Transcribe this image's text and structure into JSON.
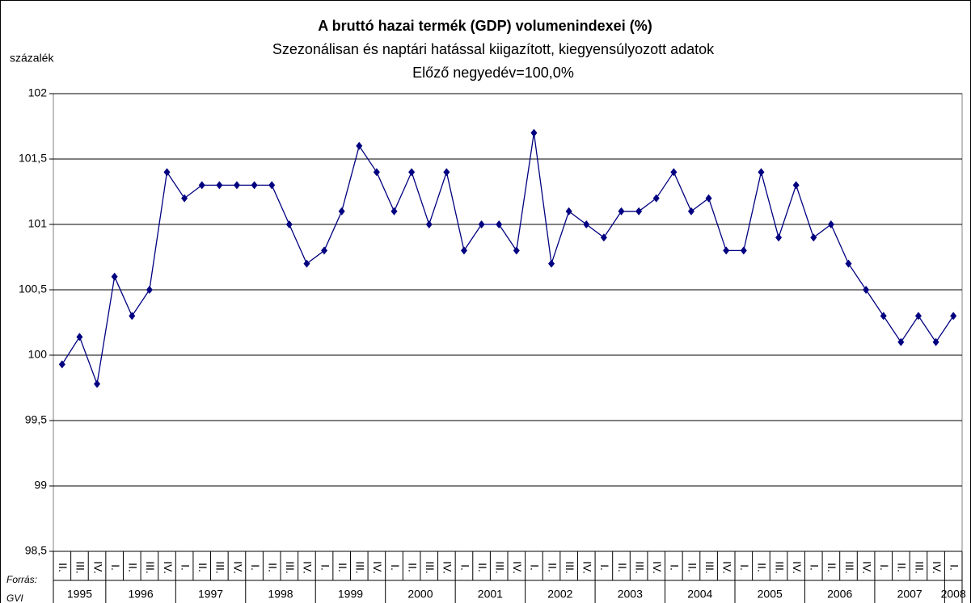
{
  "chart_data": {
    "type": "line",
    "title": "A bruttó hazai termék (GDP) volumenindexei (%)",
    "subtitle": [
      "Szezonálisan és naptári hatással kiigazított, kiegyensúlyozott adatok",
      "Előző negyedév=100,0%"
    ],
    "y_label": "százalék",
    "source": [
      "Forrás:",
      "GVI"
    ],
    "categories": [
      "II.",
      "III.",
      "IV.",
      "I.",
      "II.",
      "III.",
      "IV.",
      "I.",
      "II.",
      "III.",
      "IV.",
      "I.",
      "II.",
      "III.",
      "IV.",
      "I.",
      "II.",
      "III.",
      "IV.",
      "I.",
      "II.",
      "III.",
      "IV.",
      "I.",
      "II.",
      "III.",
      "IV.",
      "I.",
      "II.",
      "III.",
      "IV.",
      "I.",
      "II.",
      "III.",
      "IV.",
      "I.",
      "II.",
      "III.",
      "IV.",
      "I.",
      "II.",
      "III.",
      "IV.",
      "I.",
      "II.",
      "III.",
      "IV.",
      "I.",
      "II.",
      "III.",
      "IV.",
      "I."
    ],
    "years": [
      "1995",
      "1996",
      "1997",
      "1998",
      "1999",
      "2000",
      "2001",
      "2002",
      "2003",
      "2004",
      "2005",
      "2006",
      "2007",
      "2008"
    ],
    "series": [
      {
        "name": "GDP",
        "color": "#000080",
        "values": [
          99.93,
          100.14,
          99.78,
          100.6,
          100.3,
          100.5,
          101.4,
          101.2,
          101.3,
          101.3,
          101.3,
          101.3,
          101.3,
          101.0,
          100.7,
          100.8,
          101.1,
          101.6,
          101.4,
          101.1,
          101.4,
          101.0,
          101.4,
          100.8,
          101.0,
          101.0,
          100.8,
          101.7,
          100.7,
          101.1,
          101.0,
          100.9,
          101.1,
          101.1,
          101.2,
          101.4,
          101.1,
          101.2,
          100.8,
          100.8,
          101.4,
          100.9,
          101.3,
          100.9,
          101.0,
          100.7,
          100.5,
          100.3,
          100.1,
          100.3,
          100.1,
          100.3
        ]
      }
    ],
    "ylim": [
      98.5,
      102
    ],
    "yticks": [
      {
        "value": 98.5,
        "label": "98,5"
      },
      99,
      {
        "value": 99.5,
        "label": "99,5"
      },
      100,
      {
        "value": 100.5,
        "label": "100,5"
      },
      101,
      {
        "value": 101.5,
        "label": "101,5"
      },
      102
    ],
    "grid": true
  }
}
